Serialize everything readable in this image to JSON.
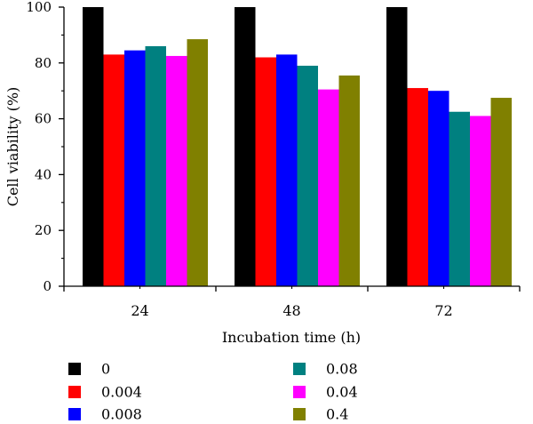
{
  "chart_data": {
    "type": "bar",
    "title": "",
    "xlabel": "Incubation time (h)",
    "ylabel": "Cell viability (%)",
    "ylim": [
      0,
      100
    ],
    "yticks": [
      "0",
      "20",
      "40",
      "60",
      "80",
      "100"
    ],
    "categories": [
      "24",
      "48",
      "72"
    ],
    "legend_columns": 2,
    "grid": false,
    "series": [
      {
        "name": "0",
        "color": "#000000",
        "values": [
          100,
          100,
          100
        ]
      },
      {
        "name": "0.004",
        "color": "#ff0000",
        "values": [
          83,
          82,
          71
        ]
      },
      {
        "name": "0.008",
        "color": "#0000ff",
        "values": [
          84.5,
          83,
          70
        ]
      },
      {
        "name": "0.08",
        "color": "#008080",
        "values": [
          86,
          79,
          62.5
        ]
      },
      {
        "name": "0.04",
        "color": "#ff00ff",
        "values": [
          82.5,
          70.5,
          61
        ]
      },
      {
        "name": "0.4",
        "color": "#808000",
        "values": [
          88.5,
          75.5,
          67.5
        ]
      }
    ]
  }
}
